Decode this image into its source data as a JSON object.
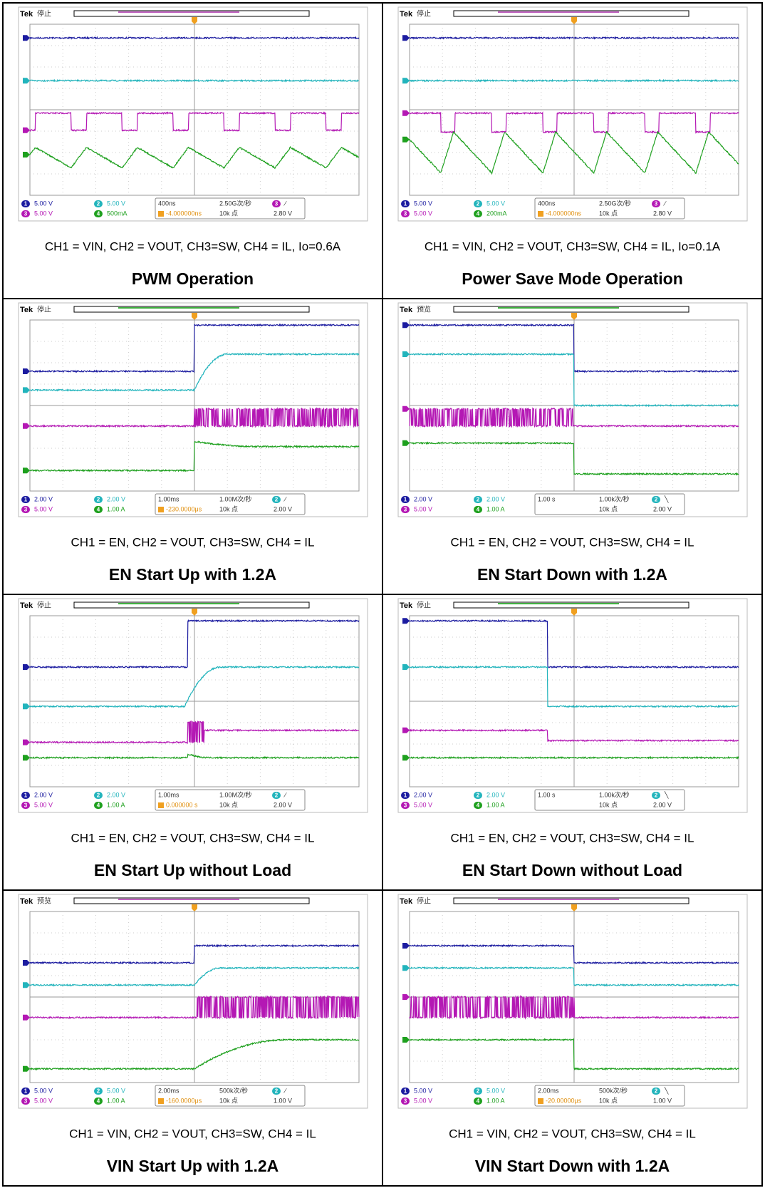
{
  "panels": [
    {
      "brand": "Tek",
      "status": "停止",
      "channels": [
        {
          "id": "1",
          "scale": "5.00 V"
        },
        {
          "id": "2",
          "scale": "5.00 V"
        },
        {
          "id": "3",
          "scale": "5.00 V"
        },
        {
          "id": "4",
          "scale": "500mA"
        }
      ],
      "timebase": "400ns",
      "sample_rate": "2.50G次/秒",
      "points": "10k 点",
      "delay": "-4.000000ns",
      "trigger": {
        "source": "3",
        "slope": "∕",
        "level": "2.80 V"
      },
      "caption": "CH1 = VIN, CH2 = VOUT, CH3=SW, CH4 = IL, Io=0.6A",
      "title": "PWM Operation"
    },
    {
      "brand": "Tek",
      "status": "停止",
      "channels": [
        {
          "id": "1",
          "scale": "5.00 V"
        },
        {
          "id": "2",
          "scale": "5.00 V"
        },
        {
          "id": "3",
          "scale": "5.00 V"
        },
        {
          "id": "4",
          "scale": "200mA"
        }
      ],
      "timebase": "400ns",
      "sample_rate": "2.50G次/秒",
      "points": "10k 点",
      "delay": "-4.000000ns",
      "trigger": {
        "source": "3",
        "slope": "∕",
        "level": "2.80 V"
      },
      "caption": "CH1 = VIN, CH2 = VOUT, CH3=SW, CH4 = IL, Io=0.1A",
      "title": "Power Save Mode Operation"
    },
    {
      "brand": "Tek",
      "status": "停止",
      "channels": [
        {
          "id": "1",
          "scale": "2.00 V"
        },
        {
          "id": "2",
          "scale": "2.00 V"
        },
        {
          "id": "3",
          "scale": "5.00 V"
        },
        {
          "id": "4",
          "scale": "1.00 A"
        }
      ],
      "timebase": "1.00ms",
      "sample_rate": "1.00M次/秒",
      "points": "10k 点",
      "delay": "-230.0000μs",
      "trigger": {
        "source": "2",
        "slope": "∕",
        "level": "2.00 V"
      },
      "caption": "CH1 = EN, CH2 = VOUT, CH3=SW, CH4 = IL",
      "title": "EN Start Up with 1.2A"
    },
    {
      "brand": "Tek",
      "status": "预览",
      "channels": [
        {
          "id": "1",
          "scale": "2.00 V"
        },
        {
          "id": "2",
          "scale": "2.00 V"
        },
        {
          "id": "3",
          "scale": "5.00 V"
        },
        {
          "id": "4",
          "scale": "1.00 A"
        }
      ],
      "timebase": "1.00 s",
      "sample_rate": "1.00k次/秒",
      "points": "10k 点",
      "trigger": {
        "source": "2",
        "slope": "╲",
        "level": "2.00 V"
      },
      "caption": "CH1 = EN, CH2 = VOUT, CH3=SW, CH4 = IL",
      "title": "EN Start Down with 1.2A"
    },
    {
      "brand": "Tek",
      "status": "停止",
      "channels": [
        {
          "id": "1",
          "scale": "2.00 V"
        },
        {
          "id": "2",
          "scale": "2.00 V"
        },
        {
          "id": "3",
          "scale": "5.00 V"
        },
        {
          "id": "4",
          "scale": "1.00 A"
        }
      ],
      "timebase": "1.00ms",
      "sample_rate": "1.00M次/秒",
      "points": "10k 点",
      "delay": "0.000000 s",
      "trigger": {
        "source": "2",
        "slope": "∕",
        "level": "2.00 V"
      },
      "caption": "CH1 = EN, CH2 = VOUT, CH3=SW, CH4 = IL",
      "title": "EN Start Up without Load"
    },
    {
      "brand": "Tek",
      "status": "停止",
      "channels": [
        {
          "id": "1",
          "scale": "2.00 V"
        },
        {
          "id": "2",
          "scale": "2.00 V"
        },
        {
          "id": "3",
          "scale": "5.00 V"
        },
        {
          "id": "4",
          "scale": "1.00 A"
        }
      ],
      "timebase": "1.00 s",
      "sample_rate": "1.00k次/秒",
      "points": "10k 点",
      "trigger": {
        "source": "2",
        "slope": "╲",
        "level": "2.00 V"
      },
      "caption": "CH1 = EN, CH2 = VOUT, CH3=SW, CH4 = IL",
      "title": "EN Start Down without Load"
    },
    {
      "brand": "Tek",
      "status": "预览",
      "channels": [
        {
          "id": "1",
          "scale": "5.00 V"
        },
        {
          "id": "2",
          "scale": "5.00 V"
        },
        {
          "id": "3",
          "scale": "5.00 V"
        },
        {
          "id": "4",
          "scale": "1.00 A"
        }
      ],
      "timebase": "2.00ms",
      "sample_rate": "500k次/秒",
      "points": "10k 点",
      "delay": "-160.0000μs",
      "trigger": {
        "source": "2",
        "slope": "∕",
        "level": "1.00 V"
      },
      "caption": "CH1 = VIN, CH2 = VOUT, CH3=SW, CH4 = IL",
      "title": "VIN Start Up with 1.2A"
    },
    {
      "brand": "Tek",
      "status": "停止",
      "channels": [
        {
          "id": "1",
          "scale": "5.00 V"
        },
        {
          "id": "2",
          "scale": "5.00 V"
        },
        {
          "id": "3",
          "scale": "5.00 V"
        },
        {
          "id": "4",
          "scale": "1.00 A"
        }
      ],
      "timebase": "2.00ms",
      "sample_rate": "500k次/秒",
      "points": "10k 点",
      "delay": "-20.00000μs",
      "trigger": {
        "source": "2",
        "slope": "╲",
        "level": "1.00 V"
      },
      "caption": "CH1 = VIN, CH2 = VOUT, CH3=SW, CH4 = IL",
      "title": "VIN Start Down with 1.2A"
    }
  ]
}
